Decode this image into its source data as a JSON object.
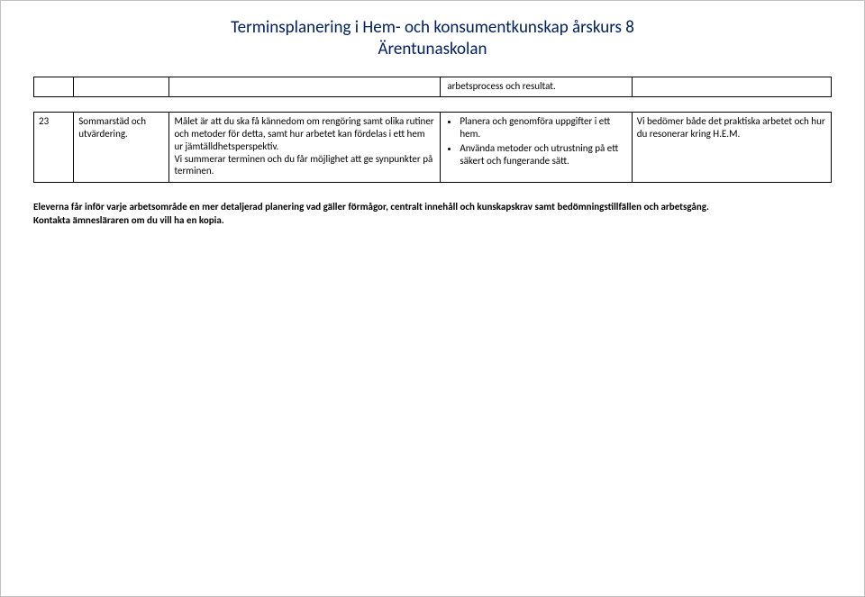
{
  "header": {
    "line1": "Terminsplanering i Hem- och konsumentkunskap årskurs 8",
    "line2": "Ärentunaskolan"
  },
  "table1": {
    "stray_text": "arbetsprocess och resultat."
  },
  "table2": {
    "week": "23",
    "topic": "Sommarstäd och utvärdering.",
    "goal_p1": "Målet är att du ska få kännedom om rengöring samt olika rutiner och metoder för detta, samt hur arbetet kan fördelas i ett hem ur jämtälldhetsperspektiv.",
    "goal_p2": "Vi summerar terminen och du får möjlighet att ge synpunkter på terminen.",
    "bullets": {
      "b1": "Planera och genomföra uppgifter i ett hem.",
      "b2": "Använda metoder och utrustning på ett säkert och fungerande sätt."
    },
    "assess": "Vi bedömer både det praktiska arbetet och hur du resonerar kring H.E.M."
  },
  "footer": {
    "p1": "Eleverna får inför varje arbetsområde en mer detaljerad planering vad gäller förmågor, centralt innehåll och kunskapskrav samt bedömningstillfällen och arbetsgång.",
    "p2": "Kontakta ämnesläraren om du vill ha en kopia."
  }
}
